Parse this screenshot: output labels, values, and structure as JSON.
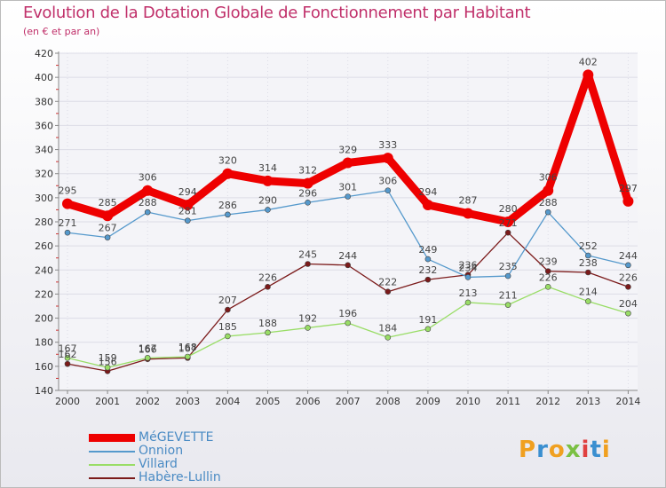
{
  "chart_data": {
    "type": "line",
    "title": "Evolution de la Dotation Globale de Fonctionnement par Habitant",
    "subtitle": "(en € et par an)",
    "xlabel": "",
    "ylabel": "",
    "ylim": [
      140,
      420
    ],
    "yticks": [
      140,
      160,
      180,
      200,
      220,
      240,
      260,
      280,
      300,
      320,
      340,
      360,
      380,
      400,
      420
    ],
    "ytick_labels": [
      "140",
      "160",
      "180",
      "200",
      "220",
      "240",
      "260",
      "280",
      "300",
      "320",
      "340",
      "360",
      "380",
      "400",
      "420"
    ],
    "categories": [
      "2000",
      "2001",
      "2002",
      "2003",
      "2004",
      "2005",
      "2006",
      "2007",
      "2008",
      "2009",
      "2010",
      "2011",
      "2012",
      "2013",
      "2014"
    ],
    "grid": true,
    "legend_position": "bottom-left",
    "series": [
      {
        "name": "Habère-Lullin",
        "color": "#7b1a1a",
        "labels": [
          "162",
          "156",
          "166",
          "167",
          "207",
          "226",
          "245",
          "244",
          "222",
          "232",
          "236",
          "271",
          "239",
          "238",
          "226"
        ],
        "values": [
          162,
          156,
          166,
          167,
          207,
          226,
          245,
          244,
          222,
          232,
          236,
          271,
          239,
          238,
          226
        ]
      },
      {
        "name": "Villard",
        "color": "#99dd66",
        "labels": [
          "167",
          "159",
          "167",
          "168",
          "185",
          "188",
          "192",
          "196",
          "184",
          "191",
          "213",
          "211",
          "226",
          "214",
          "204"
        ],
        "values": [
          167,
          159,
          167,
          168,
          185,
          188,
          192,
          196,
          184,
          191,
          213,
          211,
          226,
          214,
          204
        ]
      },
      {
        "name": "Onnion",
        "color": "#5599cc",
        "labels": [
          "271",
          "267",
          "288",
          "281",
          "286",
          "290",
          "296",
          "301",
          "306",
          "249",
          "234",
          "235",
          "288",
          "252",
          "244"
        ],
        "values": [
          271,
          267,
          288,
          281,
          286,
          290,
          296,
          301,
          306,
          249,
          234,
          235,
          288,
          252,
          244
        ]
      },
      {
        "name": "MéGEVETTE",
        "color": "#ee0000",
        "labels": [
          "295",
          "285",
          "306",
          "294",
          "320",
          "314",
          "312",
          "329",
          "333",
          "294",
          "287",
          "280",
          "306",
          "402",
          "297"
        ],
        "values": [
          295,
          285,
          306,
          294,
          320,
          314,
          312,
          329,
          333,
          294,
          287,
          280,
          306,
          402,
          297
        ]
      }
    ]
  },
  "legend": {
    "items": [
      {
        "label": "MéGEVETTE",
        "color": "#ee0000",
        "weight": "thick"
      },
      {
        "label": "Onnion",
        "color": "#5599cc",
        "weight": "thin"
      },
      {
        "label": "Villard",
        "color": "#99dd66",
        "weight": "thin"
      },
      {
        "label": "Habère-Lullin",
        "color": "#7b1a1a",
        "weight": "thin"
      }
    ]
  },
  "logo": {
    "letters": [
      "P",
      "r",
      "o",
      "x",
      "i",
      "t",
      "i"
    ],
    "colors": [
      "#f0a020",
      "#3a8fd0",
      "#f0a020",
      "#7bc043",
      "#e04040",
      "#3a8fd0",
      "#f0a020"
    ]
  }
}
